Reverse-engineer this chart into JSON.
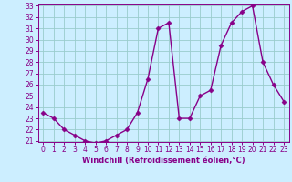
{
  "x": [
    0,
    1,
    2,
    3,
    4,
    5,
    6,
    7,
    8,
    9,
    10,
    11,
    12,
    13,
    14,
    15,
    16,
    17,
    18,
    19,
    20,
    21,
    22,
    23
  ],
  "y": [
    23.5,
    23.0,
    22.0,
    21.5,
    21.0,
    20.8,
    21.0,
    21.5,
    22.0,
    23.5,
    26.5,
    31.0,
    31.5,
    23.0,
    23.0,
    25.0,
    25.5,
    29.5,
    31.5,
    32.5,
    33.0,
    28.0,
    26.0,
    24.5
  ],
  "line_color": "#880088",
  "marker": "D",
  "marker_size": 2.5,
  "bg_color": "#cceeff",
  "grid_color": "#99cccc",
  "xlabel": "Windchill (Refroidissement éolien,°C)",
  "ylim": [
    21,
    33
  ],
  "xlim": [
    -0.5,
    23.5
  ],
  "yticks": [
    21,
    22,
    23,
    24,
    25,
    26,
    27,
    28,
    29,
    30,
    31,
    32,
    33
  ],
  "xticks": [
    0,
    1,
    2,
    3,
    4,
    5,
    6,
    7,
    8,
    9,
    10,
    11,
    12,
    13,
    14,
    15,
    16,
    17,
    18,
    19,
    20,
    21,
    22,
    23
  ],
  "tick_label_size": 5.5,
  "xlabel_size": 6.0,
  "line_width": 1.0
}
